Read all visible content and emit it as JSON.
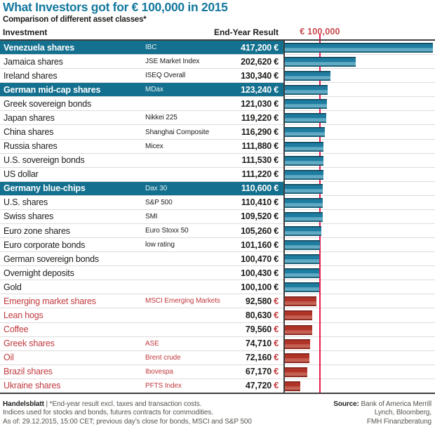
{
  "title": "What Investors got for € 100,000 in 2015",
  "subtitle": "Comparison of different asset classes*",
  "header": {
    "investment": "Investment",
    "end_year_result": "End-Year Result",
    "reference_label": "€ 100,000"
  },
  "chart_data": {
    "type": "bar",
    "orientation": "horizontal",
    "currency": "€",
    "reference_line_value": 100000,
    "xlim": [
      0,
      420000
    ],
    "legend_position": "none",
    "grid": "row-separators",
    "rows": [
      {
        "name": "Venezuela shares",
        "index": "IBC",
        "value": 417200,
        "value_label": "417,200",
        "highlight": true,
        "loss": false
      },
      {
        "name": "Jamaica shares",
        "index": "JSE Market Index",
        "value": 202620,
        "value_label": "202,620",
        "highlight": false,
        "loss": false
      },
      {
        "name": "Ireland shares",
        "index": "ISEQ Overall",
        "value": 130340,
        "value_label": "130,340",
        "highlight": false,
        "loss": false
      },
      {
        "name": "German mid-cap shares",
        "index": "MDax",
        "value": 123240,
        "value_label": "123,240",
        "highlight": true,
        "loss": false
      },
      {
        "name": "Greek sovereign bonds",
        "index": "",
        "value": 121030,
        "value_label": "121,030",
        "highlight": false,
        "loss": false
      },
      {
        "name": "Japan shares",
        "index": "Nikkei 225",
        "value": 119220,
        "value_label": "119,220",
        "highlight": false,
        "loss": false
      },
      {
        "name": "China shares",
        "index": "Shanghai Composite",
        "value": 116290,
        "value_label": "116,290",
        "highlight": false,
        "loss": false
      },
      {
        "name": "Russia shares",
        "index": "Micex",
        "value": 111880,
        "value_label": "111,880",
        "highlight": false,
        "loss": false
      },
      {
        "name": "U.S. sovereign bonds",
        "index": "",
        "value": 111530,
        "value_label": "111,530",
        "highlight": false,
        "loss": false
      },
      {
        "name": "US dollar",
        "index": "",
        "value": 111220,
        "value_label": "111,220",
        "highlight": false,
        "loss": false
      },
      {
        "name": "Germany blue-chips",
        "index": "Dax 30",
        "value": 110600,
        "value_label": "110,600",
        "highlight": true,
        "loss": false
      },
      {
        "name": "U.S. shares",
        "index": "S&P 500",
        "value": 110410,
        "value_label": "110,410",
        "highlight": false,
        "loss": false
      },
      {
        "name": "Swiss shares",
        "index": "SMI",
        "value": 109520,
        "value_label": "109,520",
        "highlight": false,
        "loss": false
      },
      {
        "name": "Euro zone shares",
        "index": "Euro Stoxx 50",
        "value": 105260,
        "value_label": "105,260",
        "highlight": false,
        "loss": false
      },
      {
        "name": "Euro corporate bonds",
        "index": "low rating",
        "value": 101160,
        "value_label": "101,160",
        "highlight": false,
        "loss": false
      },
      {
        "name": "German sovereign bonds",
        "index": "",
        "value": 100470,
        "value_label": "100,470",
        "highlight": false,
        "loss": false
      },
      {
        "name": "Overnight deposits",
        "index": "",
        "value": 100430,
        "value_label": "100,430",
        "highlight": false,
        "loss": false
      },
      {
        "name": "Gold",
        "index": "",
        "value": 100100,
        "value_label": "100,100",
        "highlight": false,
        "loss": false
      },
      {
        "name": "Emerging market shares",
        "index": "MSCI Emerging Markets",
        "value": 92580,
        "value_label": "92,580",
        "highlight": false,
        "loss": true
      },
      {
        "name": "Lean hogs",
        "index": "",
        "value": 80630,
        "value_label": "80,630",
        "highlight": false,
        "loss": true
      },
      {
        "name": "Coffee",
        "index": "",
        "value": 79560,
        "value_label": "79,560",
        "highlight": false,
        "loss": true
      },
      {
        "name": "Greek shares",
        "index": "ASE",
        "value": 74710,
        "value_label": "74,710",
        "highlight": false,
        "loss": true
      },
      {
        "name": "Oil",
        "index": "Brent crude",
        "value": 72160,
        "value_label": "72,160",
        "highlight": false,
        "loss": true
      },
      {
        "name": "Brazil shares",
        "index": "Ibovespa",
        "value": 67170,
        "value_label": "67,170",
        "highlight": false,
        "loss": true
      },
      {
        "name": "Ukraine shares",
        "index": "PFTS Index",
        "value": 47720,
        "value_label": "47,720",
        "highlight": false,
        "loss": true
      }
    ]
  },
  "footer": {
    "brand": "Handelsblatt",
    "line1_rest": " | *End-year result excl. taxes and transaction costs.",
    "line2": "Indices used for stocks and bonds, futures contracts for commodities.",
    "line3": "As of: 29.12.2015, 15:00 CET; previous day’s close for bonds, MSCI and S&P 500",
    "source_label": "Source:",
    "source_line1": " Bank of America Merrill",
    "source_line2": "Lynch, Bloomberg,",
    "source_line3": "FMH Finanzberatung"
  },
  "colors": {
    "accent_teal": "#14789e",
    "highlight_row_bg": "#14708f",
    "bar_gain": "#1e7ca0",
    "bar_loss": "#b03328",
    "reference_line": "#e81a4e",
    "loss_text": "#c23a3f",
    "reference_label": "#c9484d"
  }
}
